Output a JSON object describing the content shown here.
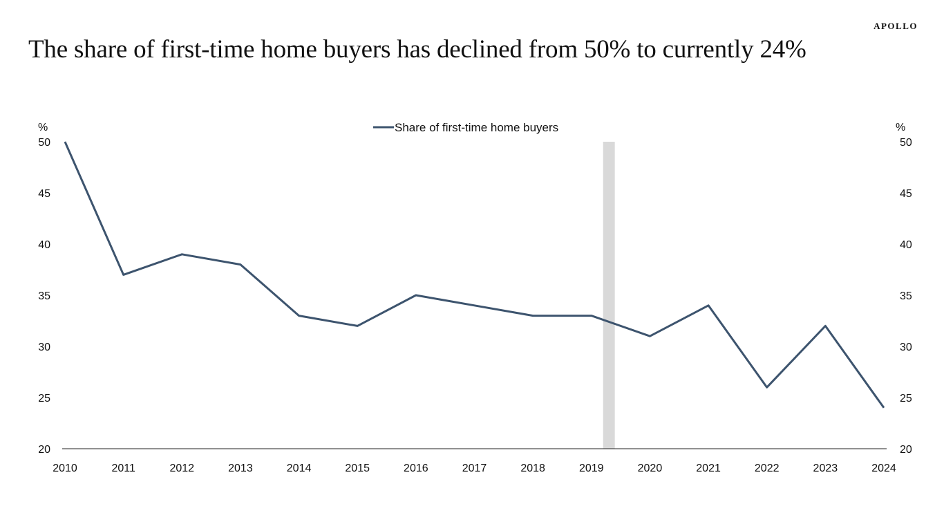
{
  "brand": "APOLLO",
  "title": "The share of first-time home buyers has declined from 50% to currently 24%",
  "colors": {
    "series": "#3d546e",
    "shading": "#d9d9d9",
    "axis": "#222222"
  },
  "chart_data": {
    "type": "line",
    "x": [
      "2010",
      "2011",
      "2012",
      "2013",
      "2014",
      "2015",
      "2016",
      "2017",
      "2018",
      "2019",
      "2020",
      "2021",
      "2022",
      "2023",
      "2024"
    ],
    "series": [
      {
        "name": "Share of first-time home buyers",
        "values": [
          50,
          37,
          39,
          38,
          33,
          32,
          35,
          34,
          33,
          33,
          31,
          34,
          26,
          32,
          24
        ]
      }
    ],
    "shaded_region": [
      2019.2,
      2019.4
    ],
    "ylim": [
      20,
      50
    ],
    "yticks": [
      20,
      25,
      30,
      35,
      40,
      45,
      50
    ],
    "ylabel_left": "%",
    "ylabel_right": "%",
    "legend_position": "top-center",
    "grid": false
  }
}
